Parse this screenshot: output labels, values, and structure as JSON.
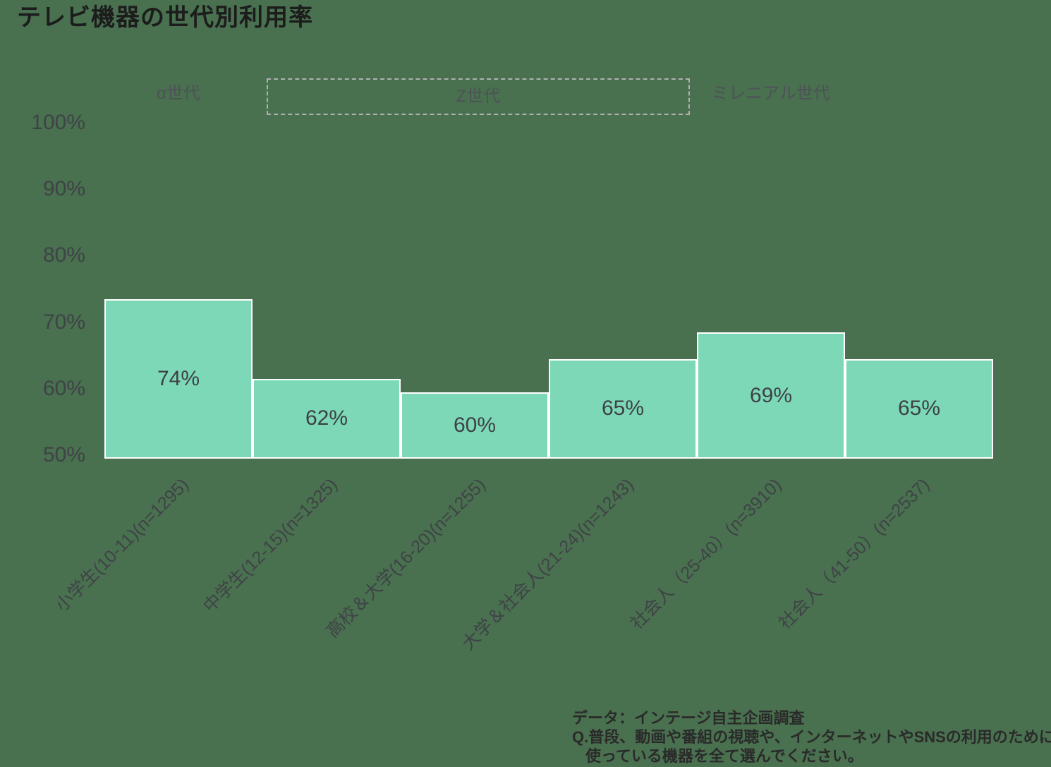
{
  "page": {
    "title": "テレビ機器の世代別利用率"
  },
  "chart_data": {
    "type": "bar",
    "title": "テレビ機器の世代別利用率",
    "categories": [
      "小学生(10-11)(n=1295)",
      "中学生(12-15)(n=1325)",
      "高校＆大学(16-20)(n=1255)",
      "大学＆社会人(21-24)(n=1243)",
      "社会人（25-40）(n=3910)",
      "社会人（41-50）(n=2537)"
    ],
    "values": [
      74,
      62,
      60,
      65,
      69,
      65
    ],
    "value_labels": [
      "74%",
      "62%",
      "60%",
      "65%",
      "69%",
      "65%"
    ],
    "y_ticks": [
      "100%",
      "90%",
      "80%",
      "70%",
      "60%",
      "50%"
    ],
    "ylim": [
      50,
      100
    ],
    "grid": false,
    "legend": "none",
    "generation_bands": [
      {
        "label": "α世代",
        "bars": [
          0
        ],
        "boxed": false
      },
      {
        "label": "Z世代",
        "bars": [
          1,
          2,
          3
        ],
        "boxed": true
      },
      {
        "label": "ミレニアル世代",
        "bars": [
          4,
          5
        ],
        "boxed": false
      }
    ],
    "colors": {
      "background": "#49704F",
      "bar_fill": "#7DD8B8",
      "bar_border": "#FFFFFF",
      "dashed_box_border": "#B0B0B0",
      "dark_text": "#3F4347",
      "generation_text": "#4E5257",
      "title_text": "#1C1C1C"
    }
  },
  "footer": {
    "lines": [
      "データ：インテージ自主企画調査",
      "Q.普段、動画や番組の視聴や、インターネットやSNSの利用のために",
      "使っている機器を全て選んでください。"
    ]
  }
}
